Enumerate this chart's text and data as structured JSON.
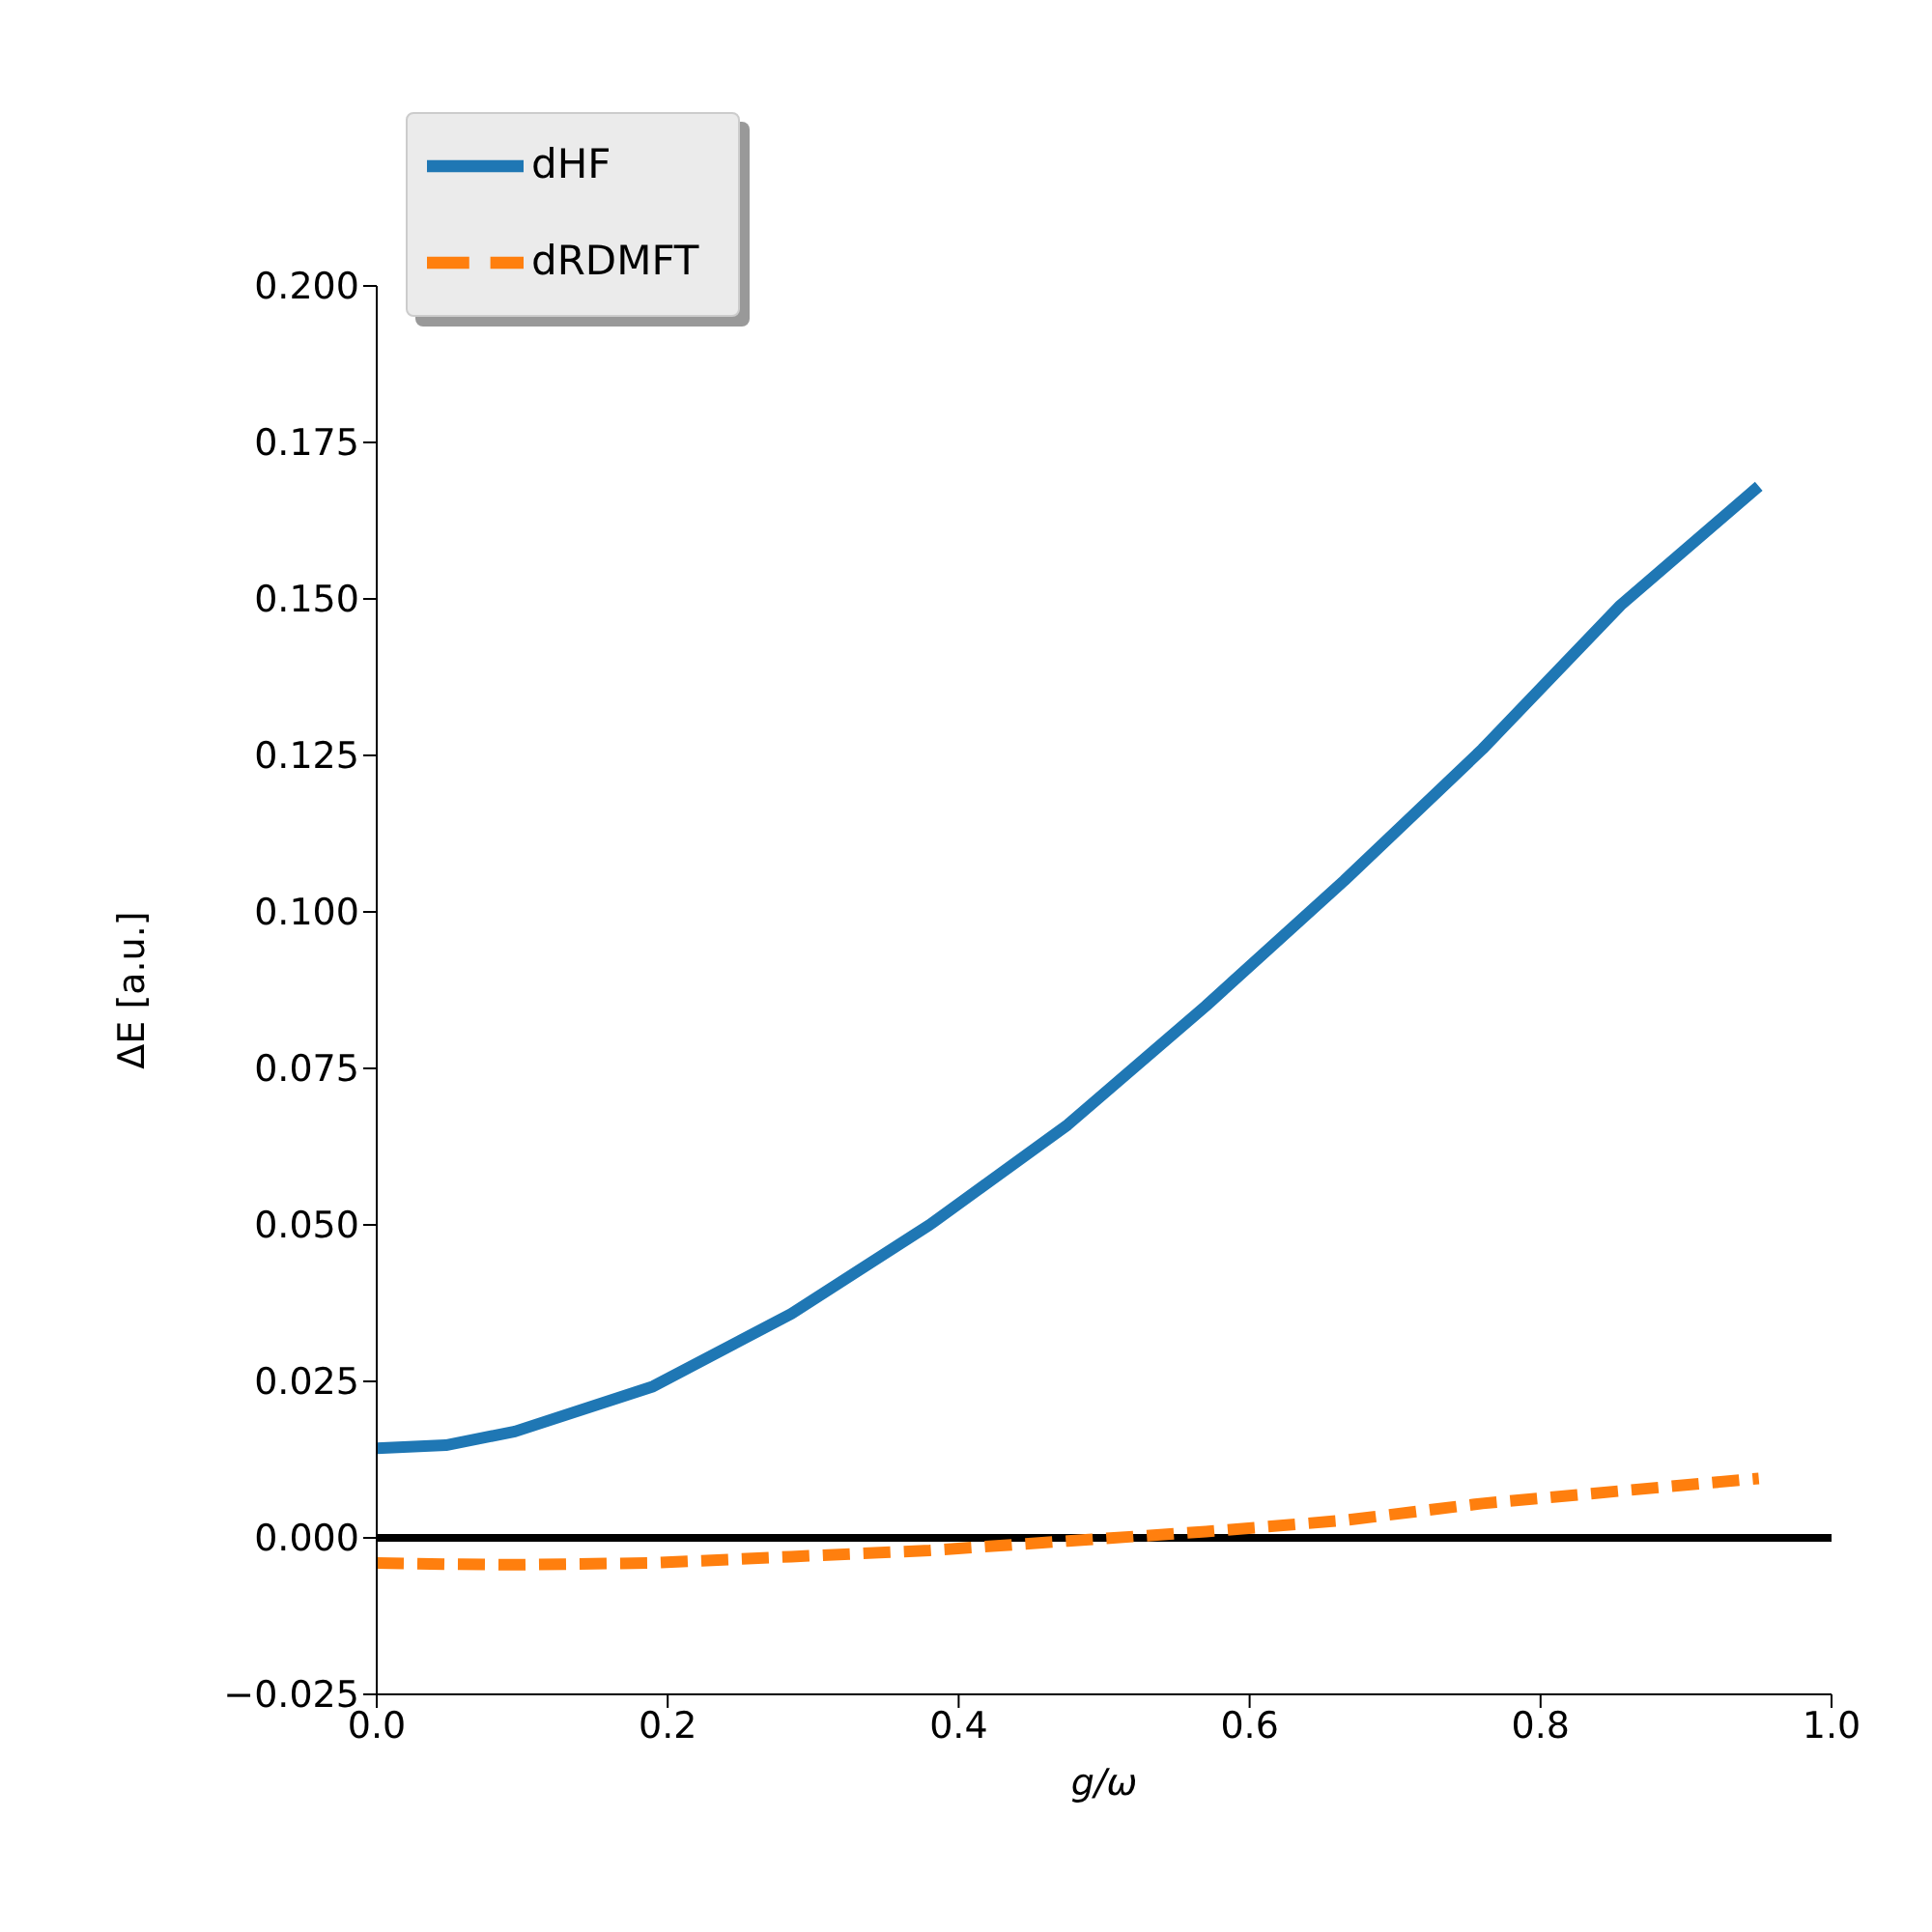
{
  "chart_data": {
    "type": "line",
    "xlabel": "g/ω",
    "ylabel": "ΔE [a.u.]",
    "x": [
      0,
      0.0475,
      0.095,
      0.19,
      0.285,
      0.38,
      0.475,
      0.57,
      0.665,
      0.76,
      0.855,
      0.95
    ],
    "series": [
      {
        "name": "dHF",
        "color": "#1f77b4",
        "line_style": "solid",
        "values": [
          0.0143,
          0.0148,
          0.017,
          0.0242,
          0.0358,
          0.05,
          0.066,
          0.085,
          0.105,
          0.126,
          0.149,
          0.168
        ]
      },
      {
        "name": "dRDMFT",
        "color": "#ff7f0e",
        "line_style": "dashed",
        "values": [
          -0.004,
          -0.0042,
          -0.0043,
          -0.004,
          -0.003,
          -0.002,
          -0.0005,
          0.001,
          0.0028,
          0.0055,
          0.0075,
          0.0095
        ]
      }
    ],
    "xlim": [
      0,
      1
    ],
    "ylim": [
      -0.025,
      0.2
    ],
    "xticks": [
      {
        "value": 0,
        "label": "0.0"
      },
      {
        "value": 0.2,
        "label": "0.2"
      },
      {
        "value": 0.4,
        "label": "0.4"
      },
      {
        "value": 0.6,
        "label": "0.6"
      },
      {
        "value": 0.8,
        "label": "0.8"
      },
      {
        "value": 1,
        "label": "1.0"
      }
    ],
    "yticks": [
      {
        "value": -0.025,
        "label": "−0.025"
      },
      {
        "value": 0,
        "label": "0.000"
      },
      {
        "value": 0.025,
        "label": "0.025"
      },
      {
        "value": 0.05,
        "label": "0.050"
      },
      {
        "value": 0.075,
        "label": "0.075"
      },
      {
        "value": 0.1,
        "label": "0.100"
      },
      {
        "value": 0.125,
        "label": "0.125"
      },
      {
        "value": 0.15,
        "label": "0.150"
      },
      {
        "value": 0.175,
        "label": "0.175"
      },
      {
        "value": 0.2,
        "label": "0.200"
      }
    ],
    "ref_lines": [
      {
        "axis": "y",
        "value": 0,
        "color": "#000000"
      }
    ],
    "grid": false,
    "legend": "top left",
    "marker": "none"
  }
}
